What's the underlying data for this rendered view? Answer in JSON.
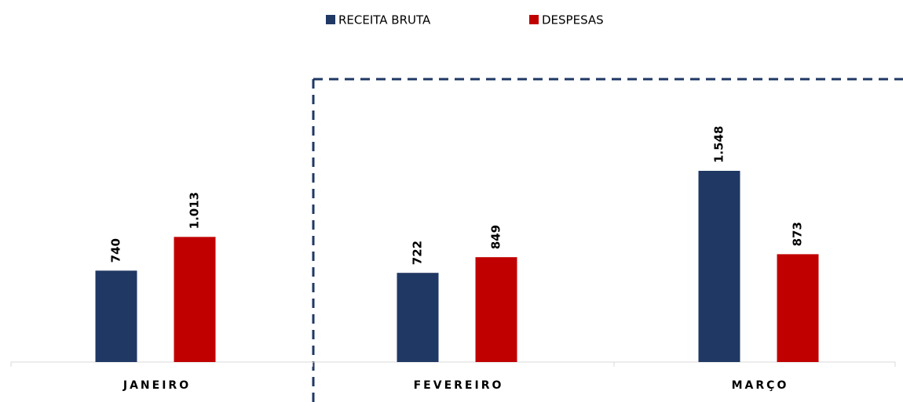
{
  "chart_data": {
    "type": "bar",
    "categories": [
      "JANEIRO",
      "FEVEREIRO",
      "MARÇO"
    ],
    "series": [
      {
        "name": "RECEITA BRUTA",
        "color": "#203864",
        "values": [
          740,
          722,
          1548
        ],
        "value_labels": [
          "740",
          "722",
          "1.548"
        ]
      },
      {
        "name": "DESPESAS",
        "color": "#c00000",
        "values": [
          1013,
          849,
          873
        ],
        "value_labels": [
          "1.013",
          "849",
          "873"
        ]
      }
    ]
  }
}
